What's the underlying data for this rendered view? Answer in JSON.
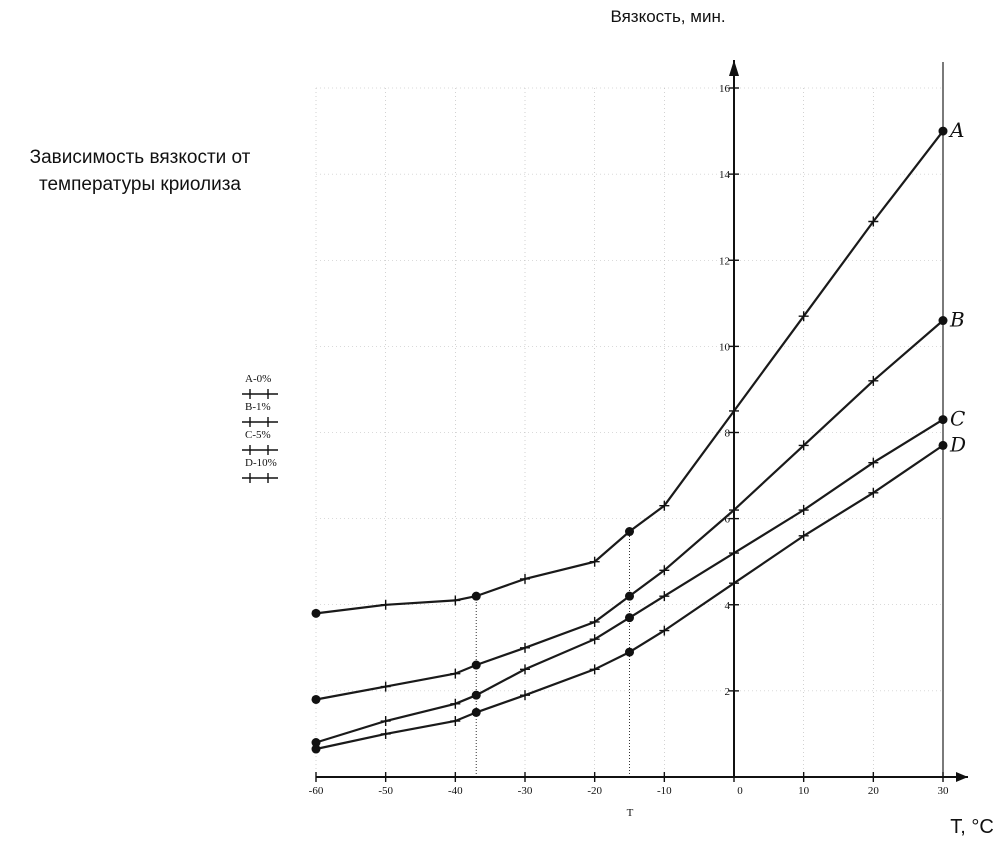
{
  "chart_data": {
    "type": "line",
    "title": "Зависимость вязкости от температуры криолиза",
    "title_lines": [
      "Зависимость вязкости от",
      "температуры криолиза"
    ],
    "ylabel": "Вязкость, мин.",
    "xlabel": "T, °C",
    "x_axis_small_label": "T",
    "xlim": [
      -60,
      30
    ],
    "ylim": [
      0,
      16
    ],
    "x_ticks": [
      -60,
      -50,
      -40,
      -30,
      -20,
      -10,
      0,
      10,
      20,
      30
    ],
    "y_ticks": [
      2,
      4,
      6,
      8,
      10,
      12,
      14,
      16
    ],
    "grid": true,
    "legend_position": "left",
    "series": [
      {
        "name": "A-0%",
        "end_label": "A",
        "points": [
          [
            -60,
            3.8
          ],
          [
            -50,
            4.0
          ],
          [
            -40,
            4.1
          ],
          [
            -37,
            4.2
          ],
          [
            -30,
            4.6
          ],
          [
            -20,
            5.0
          ],
          [
            -15,
            5.7
          ],
          [
            -10,
            6.3
          ],
          [
            0,
            8.5
          ],
          [
            10,
            10.7
          ],
          [
            20,
            12.9
          ],
          [
            30,
            15.0
          ]
        ]
      },
      {
        "name": "B-1%",
        "end_label": "B",
        "points": [
          [
            -60,
            1.8
          ],
          [
            -50,
            2.1
          ],
          [
            -40,
            2.4
          ],
          [
            -37,
            2.6
          ],
          [
            -30,
            3.0
          ],
          [
            -20,
            3.6
          ],
          [
            -15,
            4.2
          ],
          [
            -10,
            4.8
          ],
          [
            0,
            6.2
          ],
          [
            10,
            7.7
          ],
          [
            20,
            9.2
          ],
          [
            30,
            10.6
          ]
        ]
      },
      {
        "name": "C-5%",
        "end_label": "C",
        "points": [
          [
            -60,
            0.8
          ],
          [
            -50,
            1.3
          ],
          [
            -40,
            1.7
          ],
          [
            -37,
            1.9
          ],
          [
            -30,
            2.5
          ],
          [
            -20,
            3.2
          ],
          [
            -15,
            3.7
          ],
          [
            -10,
            4.2
          ],
          [
            0,
            5.2
          ],
          [
            10,
            6.2
          ],
          [
            20,
            7.3
          ],
          [
            30,
            8.3
          ]
        ]
      },
      {
        "name": "D-10%",
        "end_label": "D",
        "points": [
          [
            -60,
            0.65
          ],
          [
            -50,
            1.0
          ],
          [
            -40,
            1.3
          ],
          [
            -37,
            1.5
          ],
          [
            -30,
            1.9
          ],
          [
            -20,
            2.5
          ],
          [
            -15,
            2.9
          ],
          [
            -10,
            3.4
          ],
          [
            0,
            4.5
          ],
          [
            10,
            5.6
          ],
          [
            20,
            6.6
          ],
          [
            30,
            7.7
          ]
        ]
      }
    ],
    "reference_lines_x": [
      -37,
      -15
    ]
  }
}
